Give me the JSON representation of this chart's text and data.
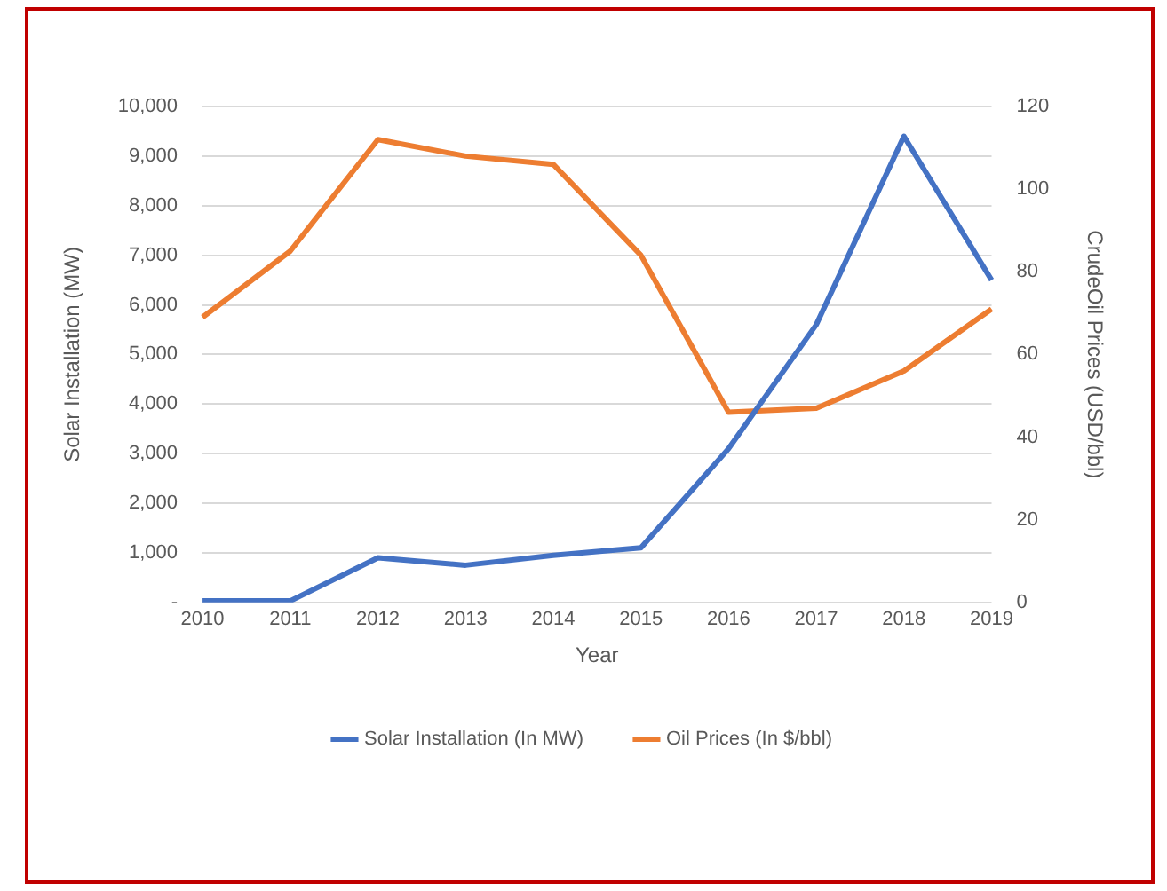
{
  "chart_data": {
    "type": "line",
    "categories": [
      "2010",
      "2011",
      "2012",
      "2013",
      "2014",
      "2015",
      "2016",
      "2017",
      "2018",
      "2019"
    ],
    "series": [
      {
        "name": "Solar Installation (In MW)",
        "color": "#4472c4",
        "values": [
          30,
          30,
          900,
          750,
          950,
          1100,
          3100,
          5600,
          9400,
          6500
        ]
      },
      {
        "name": "Oil Prices (In $/bbl)",
        "color": "#ed7d31",
        "axis": "y2",
        "values": [
          69,
          85,
          112,
          108,
          106,
          84,
          46,
          47,
          56,
          71
        ]
      }
    ],
    "xlabel": "Year",
    "ylabel": "Solar Installation (MW)",
    "y2label": "CrudeOil Prices (USD/bbl)",
    "ylim": [
      0,
      10000
    ],
    "yticks": [
      {
        "value": 0,
        "label": "-"
      },
      {
        "value": 1000,
        "label": "1,000"
      },
      {
        "value": 2000,
        "label": "2,000"
      },
      {
        "value": 3000,
        "label": "3,000"
      },
      {
        "value": 4000,
        "label": "4,000"
      },
      {
        "value": 5000,
        "label": "5,000"
      },
      {
        "value": 6000,
        "label": "6,000"
      },
      {
        "value": 7000,
        "label": "7,000"
      },
      {
        "value": 8000,
        "label": "8,000"
      },
      {
        "value": 9000,
        "label": "9,000"
      },
      {
        "value": 10000,
        "label": "10,000"
      }
    ],
    "y2lim": [
      0,
      120
    ],
    "y2ticks": [
      0,
      20,
      40,
      60,
      80,
      100,
      120
    ],
    "grid": "y",
    "legend": "bottom",
    "marker": "none",
    "line_style": "solid"
  }
}
